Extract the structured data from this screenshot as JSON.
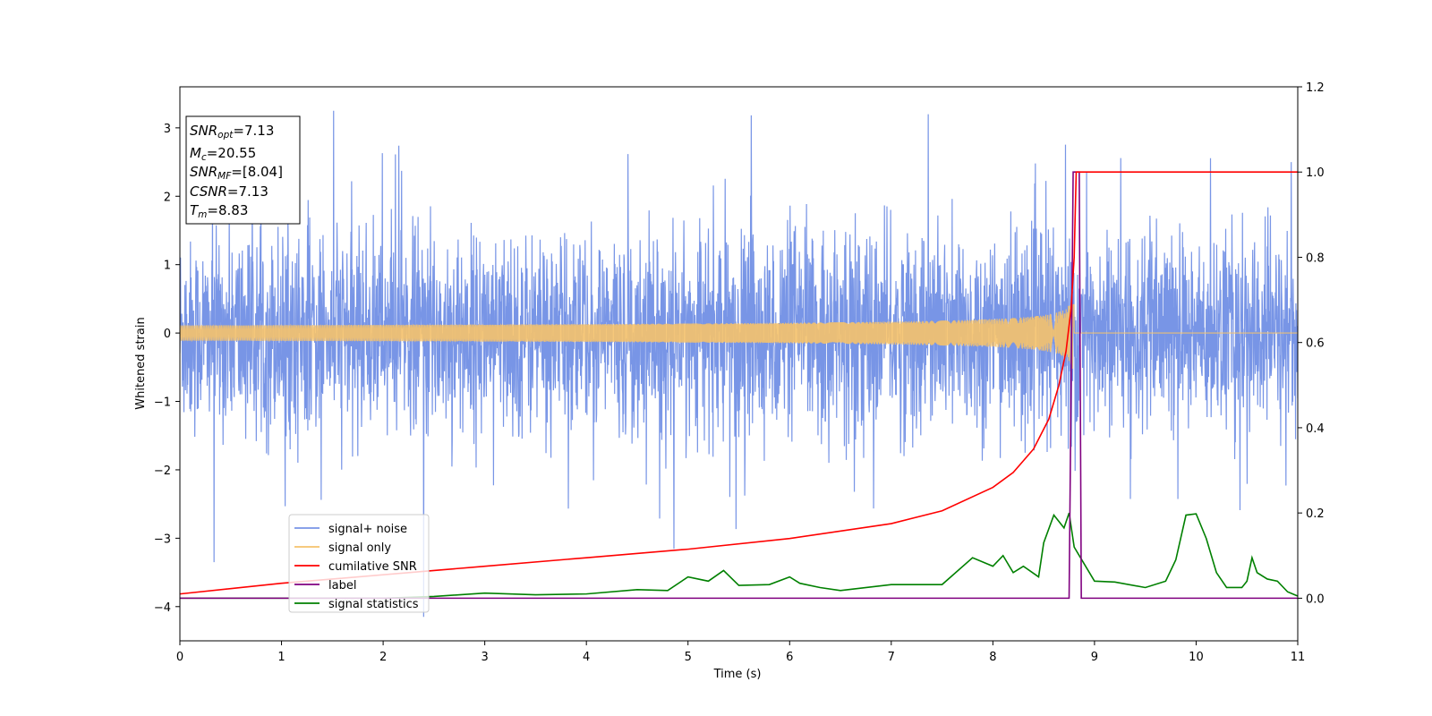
{
  "chart_data": {
    "type": "line",
    "xlabel": "Time (s)",
    "ylabel": "Whitened strain",
    "xlim": [
      0,
      11
    ],
    "ylim": [
      -4.5,
      3.6
    ],
    "y2lim": [
      -0.1,
      1.2
    ],
    "grid": false,
    "legend_position": "lower-left",
    "x_ticks": [
      "0",
      "1",
      "2",
      "3",
      "4",
      "5",
      "6",
      "7",
      "8",
      "9",
      "10",
      "11"
    ],
    "y_ticks": [
      "3",
      "2",
      "1",
      "0",
      "−1",
      "−2",
      "−3",
      "−4"
    ],
    "y2_ticks": [
      "1.2",
      "1.0",
      "0.8",
      "0.6",
      "0.4",
      "0.2",
      "0.0"
    ],
    "annotation": {
      "lines": [
        {
          "sym": "SNR",
          "sub": "opt",
          "value": "=7.13"
        },
        {
          "sym": "M",
          "sub": "c",
          "value": "=20.55"
        },
        {
          "sym": "SNR",
          "sub": "MF",
          "value": "=[8.04]"
        },
        {
          "sym": "CSNR",
          "sub": "",
          "value": "=7.13"
        },
        {
          "sym": "T",
          "sub": "m",
          "value": "=8.83"
        }
      ]
    },
    "series": [
      {
        "name": "signal+ noise",
        "axis": "left",
        "color": "#7895e6",
        "description_values": "noise with envelope ~±1.7, spikes up to 3.25 and down to -4.15",
        "noise_amplitude": 1.7,
        "max_spike": 3.25,
        "min_spike": -4.15
      },
      {
        "name": "signal only",
        "axis": "left",
        "color": "#f5c26b",
        "chirp_end_time": 8.8,
        "amplitude_at_merger": 0.6,
        "after_merger": 0
      },
      {
        "name": "cumilative SNR",
        "axis": "right",
        "color": "#ff0000",
        "x": [
          0,
          1,
          2,
          3,
          4,
          5,
          6,
          7,
          7.5,
          8,
          8.2,
          8.4,
          8.55,
          8.65,
          8.72,
          8.77,
          8.8,
          8.82,
          11
        ],
        "y": [
          0.01,
          0.035,
          0.055,
          0.075,
          0.095,
          0.115,
          0.14,
          0.175,
          0.205,
          0.26,
          0.295,
          0.35,
          0.42,
          0.5,
          0.58,
          0.68,
          0.8,
          1.0,
          1.0
        ]
      },
      {
        "name": "label",
        "axis": "right",
        "color": "#800080",
        "x": [
          0,
          8.75,
          8.79,
          8.85,
          8.87,
          11
        ],
        "y": [
          0,
          0,
          1.0,
          1.0,
          0,
          0
        ]
      },
      {
        "name": "signal statistics",
        "axis": "right",
        "color": "#008000",
        "x": [
          0,
          1,
          2,
          2.5,
          3,
          3.5,
          4,
          4.5,
          4.8,
          5.0,
          5.2,
          5.35,
          5.5,
          5.8,
          6.0,
          6.1,
          6.3,
          6.5,
          7.0,
          7.5,
          7.8,
          8.0,
          8.1,
          8.2,
          8.3,
          8.45,
          8.5,
          8.6,
          8.7,
          8.75,
          8.8,
          8.9,
          9.0,
          9.2,
          9.5,
          9.7,
          9.8,
          9.9,
          10.0,
          10.1,
          10.2,
          10.3,
          10.45,
          10.5,
          10.55,
          10.6,
          10.7,
          10.8,
          10.9,
          11.0
        ],
        "y": [
          0,
          0,
          0,
          0.004,
          0.012,
          0.008,
          0.01,
          0.02,
          0.018,
          0.05,
          0.04,
          0.065,
          0.03,
          0.032,
          0.05,
          0.035,
          0.025,
          0.018,
          0.032,
          0.032,
          0.095,
          0.075,
          0.1,
          0.06,
          0.075,
          0.05,
          0.13,
          0.195,
          0.165,
          0.2,
          0.12,
          0.08,
          0.04,
          0.038,
          0.025,
          0.04,
          0.09,
          0.195,
          0.198,
          0.14,
          0.06,
          0.025,
          0.025,
          0.04,
          0.095,
          0.06,
          0.045,
          0.04,
          0.015,
          0.005
        ]
      }
    ]
  }
}
